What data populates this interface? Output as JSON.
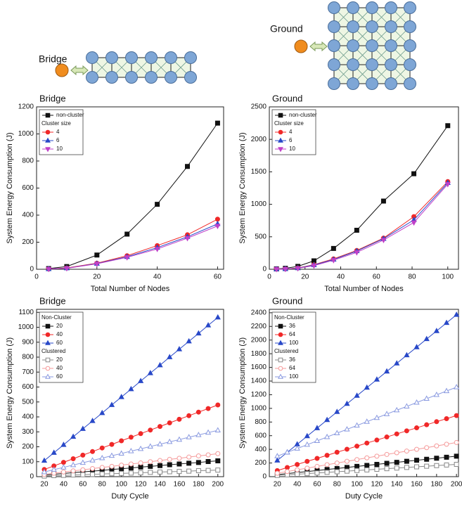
{
  "diagrams": [
    {
      "label": "Bridge"
    },
    {
      "label": "Ground"
    }
  ],
  "chart_data": [
    {
      "type": "line",
      "title": "Bridge",
      "x_label": "Total Number of Nodes",
      "y_label": "System Energy Consumption (J)",
      "x": [
        4,
        10,
        20,
        30,
        40,
        50,
        60
      ],
      "xlim": [
        0,
        62
      ],
      "xticks": [
        0,
        20,
        40,
        60
      ],
      "ylim": [
        0,
        1200
      ],
      "yticks": [
        0,
        200,
        400,
        600,
        800,
        1000,
        1200
      ],
      "legend": "upper left",
      "series_groups": [
        {
          "series": [
            {
              "name": "non-cluster",
              "color": "#111111",
              "marker": "square",
              "filled": true,
              "values": [
                5,
                20,
                105,
                260,
                480,
                760,
                1080
              ]
            }
          ]
        },
        {
          "title": "Cluster size",
          "series": [
            {
              "name": "4",
              "color": "#f02828",
              "marker": "circle",
              "filled": true,
              "values": [
                2,
                10,
                45,
                100,
                175,
                255,
                370
              ]
            },
            {
              "name": "6",
              "color": "#2848c8",
              "marker": "triangle",
              "filled": true,
              "values": [
                2,
                8,
                42,
                92,
                160,
                240,
                335
              ]
            },
            {
              "name": "10",
              "color": "#c040c8",
              "marker": "triangle-down",
              "filled": true,
              "values": [
                2,
                7,
                40,
                88,
                150,
                230,
                320
              ]
            }
          ]
        }
      ]
    },
    {
      "type": "line",
      "title": "Ground",
      "x_label": "Total Number of Nodes",
      "y_label": "System Energy Consumption (J)",
      "x": [
        4,
        9,
        16,
        25,
        36,
        49,
        64,
        81,
        100
      ],
      "xlim": [
        0,
        106
      ],
      "xticks": [
        0,
        20,
        40,
        60,
        80,
        100
      ],
      "ylim": [
        0,
        2500
      ],
      "yticks": [
        0,
        500,
        1000,
        1500,
        2000,
        2500
      ],
      "legend": "upper left",
      "series_groups": [
        {
          "series": [
            {
              "name": "non-cluster",
              "color": "#111111",
              "marker": "square",
              "filled": true,
              "values": [
                5,
                15,
                45,
                130,
                320,
                600,
                1050,
                1470,
                2210
              ]
            }
          ]
        },
        {
          "title": "Cluster size",
          "series": [
            {
              "name": "4",
              "color": "#f02828",
              "marker": "circle",
              "filled": true,
              "values": [
                2,
                5,
                20,
                70,
                160,
                290,
                480,
                810,
                1350
              ]
            },
            {
              "name": "6",
              "color": "#2848c8",
              "marker": "triangle",
              "filled": true,
              "values": [
                2,
                5,
                18,
                65,
                150,
                280,
                470,
                760,
                1330
              ]
            },
            {
              "name": "10",
              "color": "#c040c8",
              "marker": "triangle-down",
              "filled": true,
              "values": [
                2,
                4,
                15,
                55,
                140,
                260,
                450,
                720,
                1310
              ]
            }
          ]
        }
      ]
    },
    {
      "type": "line",
      "title": "Bridge",
      "x_label": "Duty Cycle",
      "y_label": "System Energy Consumption (J)",
      "x": [
        20,
        30,
        40,
        50,
        60,
        70,
        80,
        90,
        100,
        110,
        120,
        130,
        140,
        150,
        160,
        170,
        180,
        190,
        200
      ],
      "xlim": [
        12,
        206
      ],
      "xticks": [
        20,
        40,
        60,
        80,
        100,
        120,
        140,
        160,
        180,
        200
      ],
      "ylim": [
        0,
        1120
      ],
      "yticks": [
        0,
        100,
        200,
        300,
        400,
        500,
        600,
        700,
        800,
        900,
        1000,
        1100
      ],
      "legend": "upper left",
      "series_groups": [
        {
          "title": "Non-Cluster",
          "series": [
            {
              "name": "20",
              "color": "#111111",
              "marker": "square",
              "filled": true,
              "values": [
                11,
                16,
                21,
                27,
                32,
                37,
                42,
                48,
                53,
                58,
                64,
                69,
                74,
                80,
                85,
                90,
                95,
                101,
                106
              ]
            },
            {
              "name": "40",
              "color": "#f02828",
              "marker": "circle",
              "filled": true,
              "values": [
                48,
                72,
                96,
                120,
                144,
                168,
                192,
                216,
                240,
                264,
                288,
                312,
                336,
                360,
                384,
                408,
                432,
                456,
                480
              ]
            },
            {
              "name": "60",
              "color": "#2848c8",
              "marker": "triangle",
              "filled": true,
              "values": [
                107,
                160,
                213,
                267,
                320,
                373,
                426,
                480,
                533,
                586,
                640,
                693,
                746,
                800,
                853,
                906,
                959,
                1013,
                1066
              ]
            }
          ]
        },
        {
          "title": "Clustered",
          "series": [
            {
              "name": "20",
              "color": "#888888",
              "marker": "square",
              "filled": false,
              "values": [
                4,
                7,
                9,
                11,
                13,
                15,
                18,
                20,
                22,
                24,
                26,
                29,
                31,
                33,
                35,
                37,
                40,
                42,
                44
              ]
            },
            {
              "name": "40",
              "color": "#f59a9a",
              "marker": "circle",
              "filled": false,
              "values": [
                15,
                23,
                31,
                39,
                46,
                54,
                62,
                69,
                77,
                85,
                92,
                100,
                108,
                116,
                123,
                131,
                139,
                146,
                154
              ]
            },
            {
              "name": "60",
              "color": "#8a9ae0",
              "marker": "triangle",
              "filled": false,
              "values": [
                31,
                47,
                62,
                78,
                93,
                109,
                124,
                140,
                155,
                171,
                186,
                202,
                217,
                233,
                248,
                264,
                279,
                295,
                310
              ]
            }
          ]
        }
      ]
    },
    {
      "type": "line",
      "title": "Ground",
      "x_label": "Duty Cycle",
      "y_label": "System Energy Consumption (J)",
      "x": [
        20,
        30,
        40,
        50,
        60,
        70,
        80,
        90,
        100,
        110,
        120,
        130,
        140,
        150,
        160,
        170,
        180,
        190,
        200
      ],
      "xlim": [
        12,
        202
      ],
      "xticks": [
        20,
        40,
        60,
        80,
        100,
        120,
        140,
        160,
        180,
        200
      ],
      "ylim": [
        0,
        2450
      ],
      "yticks": [
        0,
        200,
        400,
        600,
        800,
        1000,
        1200,
        1400,
        1600,
        1800,
        2000,
        2200,
        2400
      ],
      "legend": "upper left",
      "series_groups": [
        {
          "title": "Non-Cluster",
          "series": [
            {
              "name": "36",
              "color": "#111111",
              "marker": "square",
              "filled": true,
              "values": [
                30,
                45,
                60,
                75,
                90,
                105,
                120,
                135,
                150,
                165,
                180,
                195,
                210,
                225,
                240,
                255,
                270,
                285,
                300
              ]
            },
            {
              "name": "64",
              "color": "#f02828",
              "marker": "circle",
              "filled": true,
              "values": [
                89,
                134,
                179,
                224,
                268,
                313,
                358,
                402,
                447,
                492,
                536,
                581,
                626,
                671,
                715,
                760,
                805,
                849,
                894
              ]
            },
            {
              "name": "100",
              "color": "#2848c8",
              "marker": "triangle",
              "filled": true,
              "values": [
                237,
                356,
                474,
                593,
                711,
                830,
                948,
                1067,
                1185,
                1304,
                1422,
                1541,
                1659,
                1778,
                1896,
                2015,
                2133,
                2252,
                2370
              ]
            }
          ]
        },
        {
          "title": "Clustered",
          "series": [
            {
              "name": "36",
              "color": "#888888",
              "marker": "square",
              "filled": false,
              "values": [
                18,
                27,
                36,
                45,
                54,
                63,
                72,
                81,
                90,
                99,
                108,
                117,
                126,
                135,
                144,
                153,
                162,
                171,
                180
              ]
            },
            {
              "name": "64",
              "color": "#f59a9a",
              "marker": "circle",
              "filled": false,
              "values": [
                50,
                75,
                100,
                125,
                150,
                175,
                200,
                225,
                250,
                275,
                300,
                325,
                350,
                375,
                400,
                425,
                450,
                475,
                500
              ]
            },
            {
              "name": "100",
              "color": "#8a9ae0",
              "marker": "triangle",
              "filled": false,
              "values": [
                300,
                356,
                412,
                468,
                524,
                581,
                637,
                693,
                749,
                805,
                861,
                917,
                973,
                1029,
                1085,
                1142,
                1198,
                1254,
                1310
              ]
            }
          ]
        }
      ]
    }
  ]
}
